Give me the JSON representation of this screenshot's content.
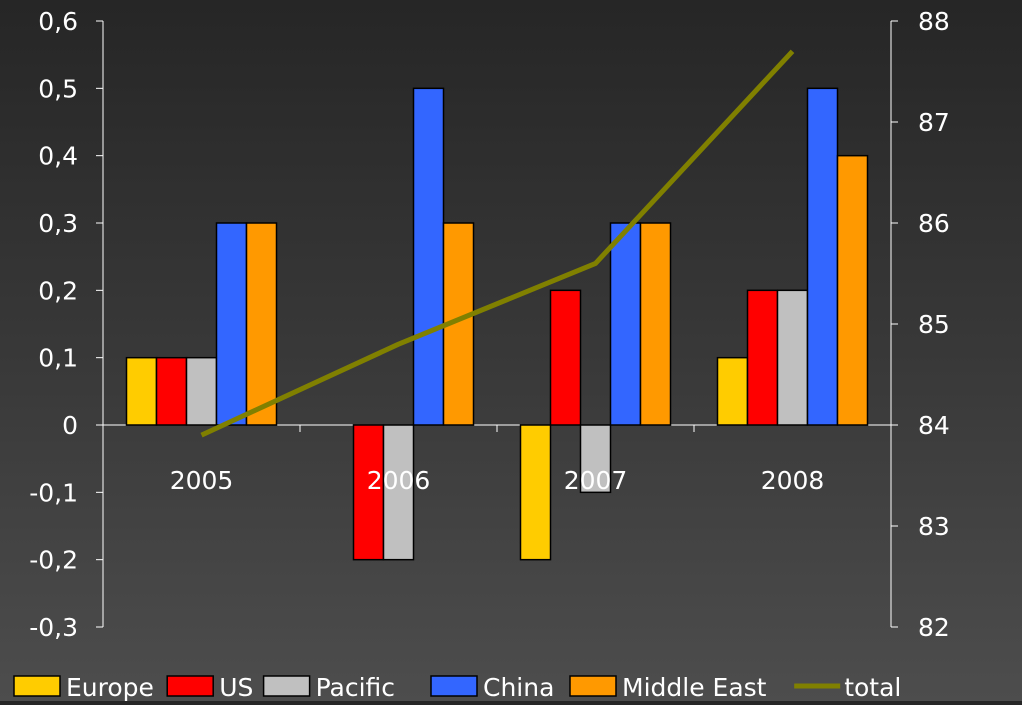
{
  "chart_data": {
    "type": "bar",
    "categories": [
      "2005",
      "2006",
      "2007",
      "2008"
    ],
    "series": [
      {
        "name": "Europe",
        "color": "#FFCC00",
        "values": [
          0.1,
          0.0,
          -0.2,
          0.1
        ]
      },
      {
        "name": "US",
        "color": "#FF0000",
        "values": [
          0.1,
          -0.2,
          0.2,
          0.2
        ]
      },
      {
        "name": "Pacific",
        "color": "#C0C0C0",
        "values": [
          0.1,
          -0.2,
          -0.1,
          0.2
        ]
      },
      {
        "name": "China",
        "color": "#3366FF",
        "values": [
          0.3,
          0.5,
          0.3,
          0.5
        ]
      },
      {
        "name": "Middle East",
        "color": "#FF9900",
        "values": [
          0.3,
          0.3,
          0.3,
          0.4
        ]
      }
    ],
    "line_series": {
      "name": "total",
      "color": "#808000",
      "axis": "right",
      "values": [
        83.9,
        84.8,
        85.6,
        87.7
      ]
    },
    "left_axis": {
      "min": -0.3,
      "max": 0.6,
      "step": 0.1,
      "ticks": [
        "-0,3",
        "-0,2",
        "-0,1",
        "0",
        "0,1",
        "0,2",
        "0,3",
        "0,4",
        "0,5",
        "0,6"
      ]
    },
    "right_axis": {
      "min": 82,
      "max": 88,
      "step": 1,
      "ticks": [
        "82",
        "83",
        "84",
        "85",
        "86",
        "87",
        "88"
      ]
    },
    "legend_position": "bottom",
    "grid": false,
    "title": "",
    "xlabel": "",
    "ylabel": ""
  }
}
